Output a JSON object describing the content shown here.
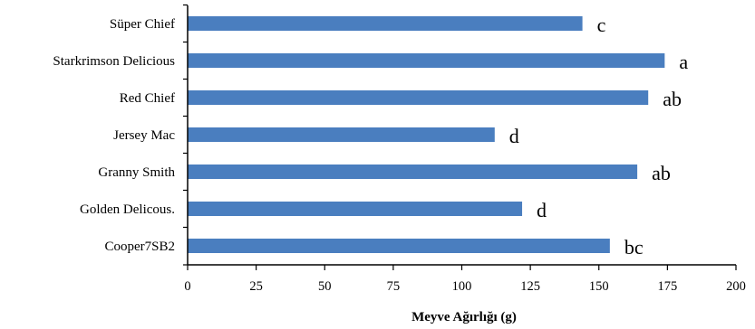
{
  "chart_data": {
    "type": "bar",
    "orientation": "horizontal",
    "categories": [
      "Süper Chief",
      "Starkrimson Delicious",
      "Red Chief",
      "Jersey Mac",
      "Granny Smith",
      "Golden Delicous.",
      "Cooper7SB2"
    ],
    "values": [
      144,
      174,
      168,
      112,
      164,
      122,
      154
    ],
    "annotations": [
      "c",
      "a",
      "ab",
      "d",
      "ab",
      "d",
      "bc"
    ],
    "xlabel": "Meyve Ağırlığı  (g)",
    "xlim": [
      0,
      200
    ],
    "xticks": [
      0,
      25,
      50,
      75,
      100,
      125,
      150,
      175,
      200
    ],
    "grid": false,
    "colors": {
      "bar": "#4a7ebf",
      "axis": "#000000"
    }
  }
}
